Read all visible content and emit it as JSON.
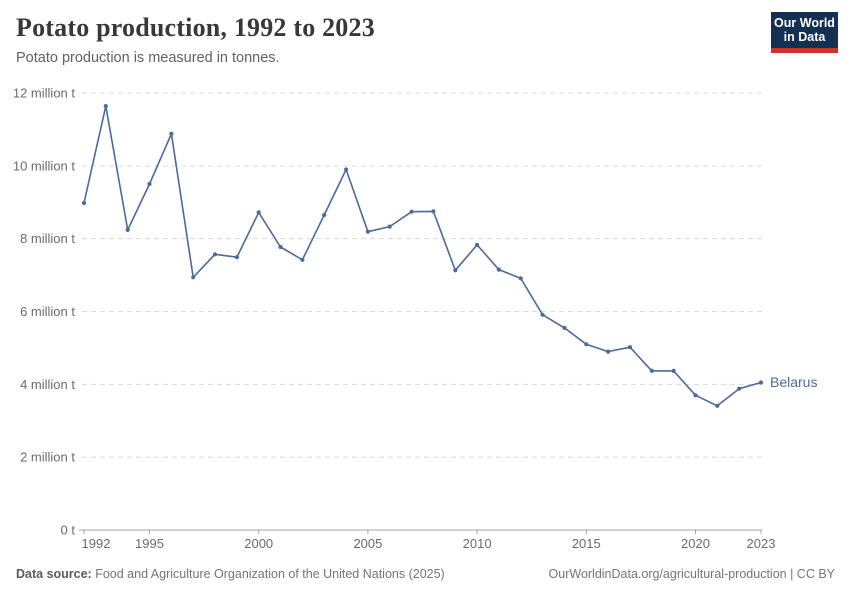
{
  "header": {
    "title": "Potato production, 1992 to 2023",
    "subtitle": "Potato production is measured in tonnes.",
    "logo": {
      "line1": "Our World",
      "line2": "in Data",
      "bg": "#132f52",
      "accent": "#cf3229"
    }
  },
  "chart_data": {
    "type": "line",
    "title": "Potato production, 1992 to 2023",
    "unit": "tonnes",
    "xlabel": "",
    "ylabel": "",
    "xlim": [
      1992,
      2023
    ],
    "ylim": [
      0,
      12000000
    ],
    "grid": "horizontal-dashed",
    "legend_position": "end-of-line-label",
    "x_ticks": [
      1992,
      1995,
      2000,
      2005,
      2010,
      2015,
      2020,
      2023
    ],
    "y_ticks": [
      {
        "value": 0,
        "label": "0 t"
      },
      {
        "value": 2000000,
        "label": "2 million t"
      },
      {
        "value": 4000000,
        "label": "4 million t"
      },
      {
        "value": 6000000,
        "label": "6 million t"
      },
      {
        "value": 8000000,
        "label": "8 million t"
      },
      {
        "value": 10000000,
        "label": "10 million t"
      },
      {
        "value": 12000000,
        "label": "12 million t"
      }
    ],
    "series": [
      {
        "name": "Belarus",
        "color": "#4c6a9c",
        "x": [
          1992,
          1993,
          1994,
          1995,
          1996,
          1997,
          1998,
          1999,
          2000,
          2001,
          2002,
          2003,
          2004,
          2005,
          2006,
          2007,
          2008,
          2009,
          2010,
          2011,
          2012,
          2013,
          2014,
          2015,
          2016,
          2017,
          2018,
          2019,
          2020,
          2021,
          2022,
          2023
        ],
        "values": [
          8980000,
          11640000,
          8240000,
          9500000,
          10880000,
          6940000,
          7570000,
          7490000,
          8720000,
          7770000,
          7420000,
          8650000,
          9900000,
          8190000,
          8330000,
          8740000,
          8750000,
          7130000,
          7830000,
          7150000,
          6910000,
          5910000,
          5550000,
          5100000,
          4900000,
          5020000,
          4370000,
          4370000,
          3700000,
          3410000,
          3880000,
          4050000
        ]
      }
    ]
  },
  "footer": {
    "source_label": "Data source:",
    "source_text": " Food and Agriculture Organization of the United Nations (2025)",
    "link_text": "OurWorldinData.org/agricultural-production | CC BY"
  }
}
